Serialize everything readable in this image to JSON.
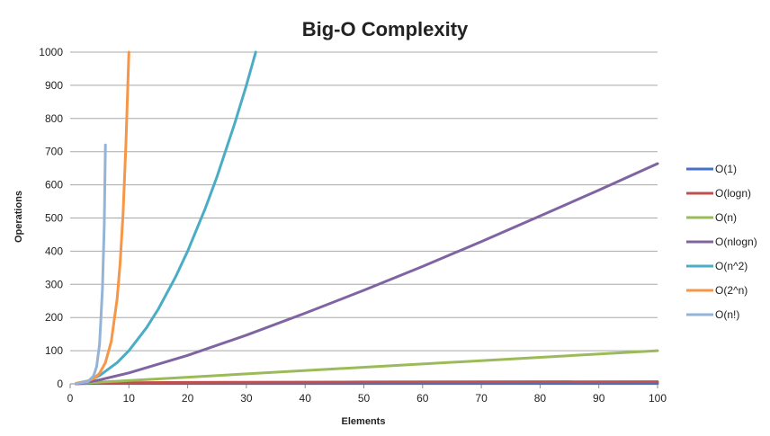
{
  "chart_data": {
    "type": "line",
    "title": "Big-O Complexity",
    "xlabel": "Elements",
    "ylabel": "Operations",
    "xlim": [
      0,
      100
    ],
    "ylim": [
      0,
      1000
    ],
    "xticks": [
      0,
      10,
      20,
      30,
      40,
      50,
      60,
      70,
      80,
      90,
      100
    ],
    "yticks": [
      0,
      100,
      200,
      300,
      400,
      500,
      600,
      700,
      800,
      900,
      1000
    ],
    "grid": true,
    "legend_position": "right",
    "series": [
      {
        "name": "O(1)",
        "color": "#4472c4",
        "x": [
          1,
          100
        ],
        "y": [
          1,
          1
        ]
      },
      {
        "name": "O(logn)",
        "color": "#c0504d",
        "x": [
          1,
          2,
          5,
          10,
          20,
          50,
          100
        ],
        "y": [
          0,
          1,
          2.3,
          3.3,
          4.3,
          5.6,
          6.6
        ]
      },
      {
        "name": "O(n)",
        "color": "#9bbb59",
        "x": [
          1,
          100
        ],
        "y": [
          1,
          100
        ]
      },
      {
        "name": "O(nlogn)",
        "color": "#8064a2",
        "x": [
          1,
          2,
          5,
          10,
          20,
          30,
          40,
          50,
          60,
          70,
          80,
          90,
          100
        ],
        "y": [
          0,
          2,
          12,
          33,
          86,
          147,
          213,
          282,
          354,
          429,
          506,
          584,
          664
        ]
      },
      {
        "name": "O(n^2)",
        "color": "#4bacc6",
        "x": [
          1,
          3,
          5,
          8,
          10,
          13,
          15,
          18,
          20,
          23,
          25,
          28,
          30,
          31.6
        ],
        "y": [
          1,
          9,
          25,
          64,
          100,
          169,
          225,
          324,
          400,
          529,
          625,
          784,
          900,
          1000
        ]
      },
      {
        "name": "O(2^n)",
        "color": "#f79646",
        "x": [
          1,
          3,
          4,
          5,
          6,
          7,
          8,
          8.5,
          9,
          9.5,
          10
        ],
        "y": [
          2,
          8,
          16,
          32,
          64,
          128,
          256,
          362,
          512,
          724,
          1000
        ]
      },
      {
        "name": "O(n!)",
        "color": "#95b3d7",
        "x": [
          1,
          3,
          4,
          4.5,
          5,
          5.5,
          5.8,
          6
        ],
        "y": [
          1,
          6,
          24,
          52,
          120,
          287,
          480,
          720
        ]
      }
    ]
  }
}
